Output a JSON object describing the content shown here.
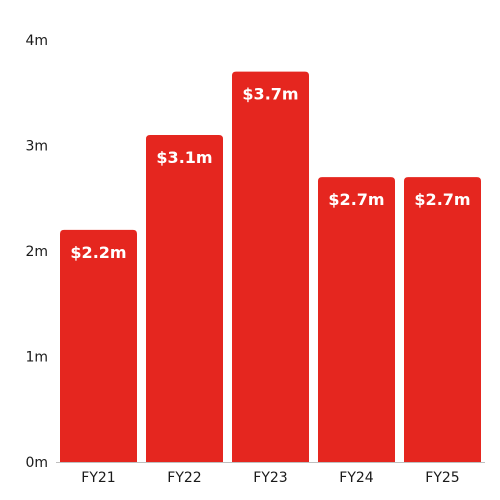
{
  "chart_data": {
    "type": "bar",
    "categories": [
      "FY21",
      "FY22",
      "FY23",
      "FY24",
      "FY25"
    ],
    "values": [
      2.2,
      3.1,
      3.7,
      2.7,
      2.7
    ],
    "data_labels": [
      "$2.2m",
      "$3.1m",
      "$3.7m",
      "$2.7m",
      "$2.7m"
    ],
    "title": "",
    "xlabel": "",
    "ylabel": "",
    "ylim": [
      0,
      4
    ],
    "yticks": [
      0,
      1,
      2,
      3,
      4
    ],
    "ytick_labels": [
      "0m",
      "1m",
      "2m",
      "3m",
      "4m"
    ],
    "grid": false,
    "bar_color": "#e5261f",
    "baseline_color": "#bfbfbf",
    "label_color": "#ffffff"
  }
}
